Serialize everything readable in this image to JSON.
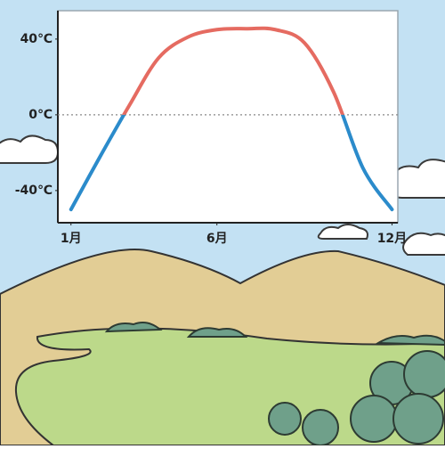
{
  "chart_data": {
    "type": "line",
    "x": [
      1,
      2,
      3,
      4,
      5,
      6,
      7,
      8,
      9,
      10,
      11,
      12
    ],
    "values": [
      -50,
      -22,
      5,
      30,
      41,
      45,
      45.5,
      45,
      38,
      12,
      -28,
      -50
    ],
    "positive_color": "#e56b61",
    "negative_color": "#2b8bcb",
    "xlim": [
      0.55,
      12.2
    ],
    "ylim": [
      -57,
      55
    ],
    "xticks": [
      {
        "value": 1,
        "label": "1月"
      },
      {
        "value": 6,
        "label": "6月"
      },
      {
        "value": 12,
        "label": "12月"
      }
    ],
    "yticks": [
      {
        "value": 40,
        "label": "40℃"
      },
      {
        "value": 0,
        "label": "0℃"
      },
      {
        "value": -40,
        "label": "-40℃"
      }
    ],
    "zero_line": true
  }
}
